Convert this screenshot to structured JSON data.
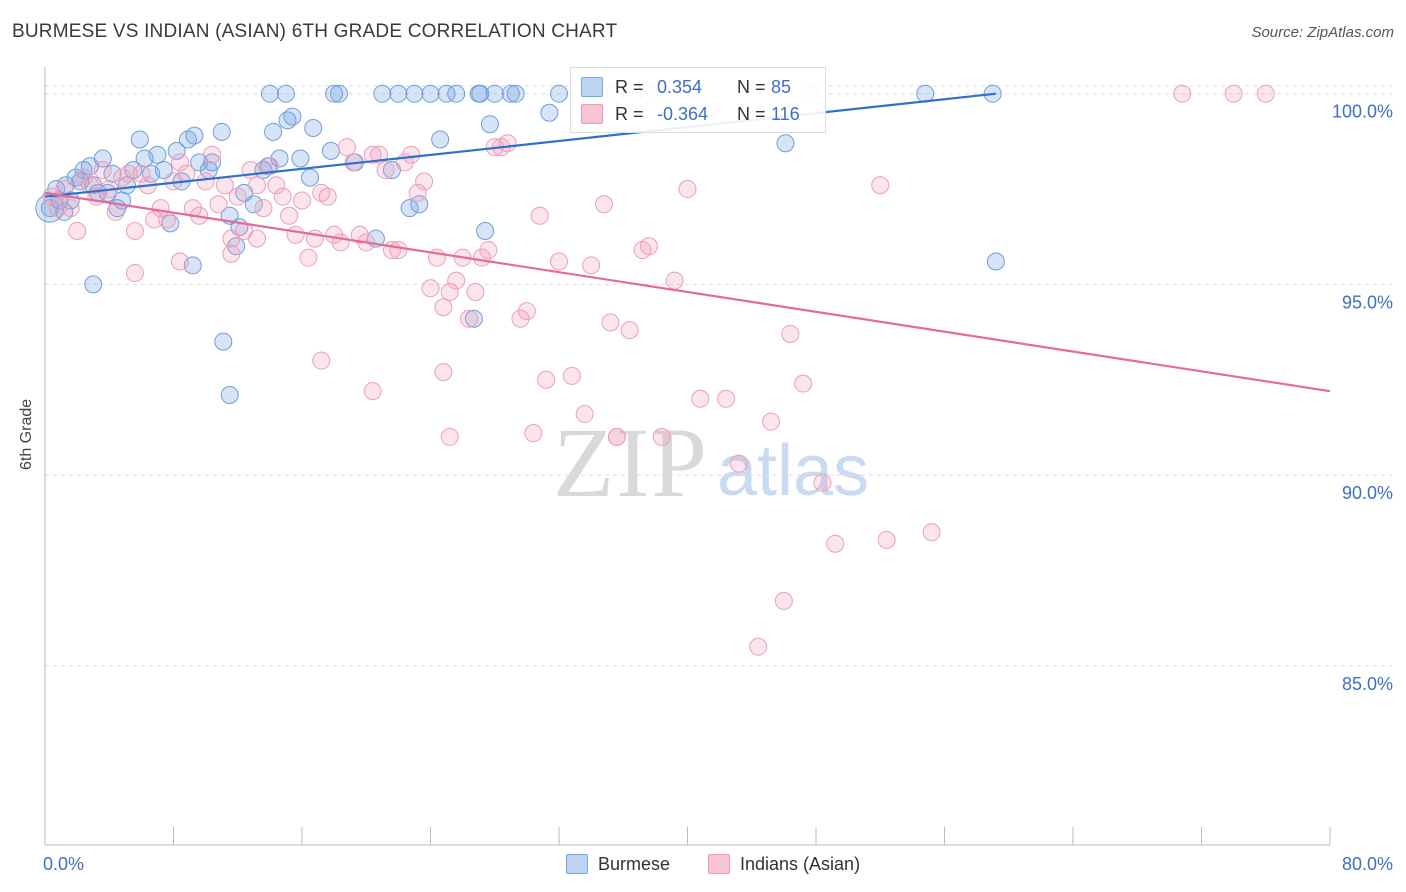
{
  "header": {
    "title": "BURMESE VS INDIAN (ASIAN) 6TH GRADE CORRELATION CHART",
    "source": "Source: ZipAtlas.com"
  },
  "watermark": {
    "zip": "ZIP",
    "atlas": "atlas"
  },
  "legend_box": {
    "rows": [
      {
        "r_label": "R =",
        "r_value": "0.354",
        "n_label": "N =",
        "n_value": "85",
        "color": "#a9c6ee"
      },
      {
        "r_label": "R =",
        "r_value": "-0.364",
        "n_label": "N =",
        "n_value": "116",
        "color": "#f5b3c8"
      }
    ]
  },
  "bottom_legend": {
    "items": [
      {
        "label": "Burmese",
        "color": "#a9c6ee"
      },
      {
        "label": "Indians (Asian)",
        "color": "#f5b3c8"
      }
    ]
  },
  "colors": {
    "blue_fill": "rgba(120,165,225,0.30)",
    "blue_stroke": "#6e9fdc",
    "blue_line": "#2f6fce",
    "pink_fill": "rgba(240,150,180,0.25)",
    "pink_stroke": "#ef9db8",
    "pink_line": "#e46b99",
    "tick_label": "#3d6fc4",
    "grid": "#dcdcdc"
  },
  "chart_data": {
    "type": "scatter",
    "title": "BURMESE VS INDIAN (ASIAN) 6TH GRADE CORRELATION CHART",
    "xlabel": "",
    "ylabel": "6th Grade",
    "xlim": [
      0,
      80
    ],
    "ylim": [
      80.3,
      100.7
    ],
    "x_tick_labels": [
      "0.0%",
      "80.0%"
    ],
    "y_ticks": [
      85,
      90,
      95,
      100
    ],
    "y_tick_labels": [
      "85.0%",
      "90.0%",
      "95.0%",
      "100.0%"
    ],
    "grid": true,
    "legend_placement": "top-center",
    "series": [
      {
        "name": "Burmese",
        "r": 0.354,
        "n": 85,
        "trend": {
          "x": [
            0,
            59.2
          ],
          "y": [
            97.3,
            100.0
          ]
        },
        "points": [
          [
            0.3,
            97.0
          ],
          [
            0.7,
            97.5
          ],
          [
            0.9,
            97.2
          ],
          [
            1.2,
            96.9
          ],
          [
            1.3,
            97.6
          ],
          [
            1.6,
            97.2
          ],
          [
            1.9,
            97.8
          ],
          [
            2.2,
            97.7
          ],
          [
            2.4,
            98.0
          ],
          [
            2.8,
            98.1
          ],
          [
            3.0,
            97.6
          ],
          [
            3.3,
            97.4
          ],
          [
            3.6,
            98.3
          ],
          [
            3.9,
            97.4
          ],
          [
            4.2,
            97.9
          ],
          [
            4.5,
            97.0
          ],
          [
            4.8,
            97.2
          ],
          [
            5.1,
            97.6
          ],
          [
            5.5,
            98.0
          ],
          [
            5.9,
            98.8
          ],
          [
            6.2,
            98.3
          ],
          [
            6.6,
            97.9
          ],
          [
            7.0,
            98.4
          ],
          [
            7.4,
            98.0
          ],
          [
            7.8,
            96.6
          ],
          [
            8.2,
            98.5
          ],
          [
            8.5,
            97.7
          ],
          [
            8.9,
            98.8
          ],
          [
            9.3,
            98.9
          ],
          [
            9.6,
            98.2
          ],
          [
            10.2,
            98.0
          ],
          [
            10.4,
            98.2
          ],
          [
            11.0,
            99.0
          ],
          [
            11.5,
            96.8
          ],
          [
            11.9,
            96.0
          ],
          [
            12.1,
            96.5
          ],
          [
            12.4,
            97.4
          ],
          [
            13.0,
            97.1
          ],
          [
            13.6,
            98.0
          ],
          [
            13.9,
            98.1
          ],
          [
            14.2,
            99.0
          ],
          [
            14.6,
            98.3
          ],
          [
            15.1,
            99.3
          ],
          [
            15.4,
            99.4
          ],
          [
            15.9,
            98.3
          ],
          [
            16.5,
            97.8
          ],
          [
            16.7,
            99.1
          ],
          [
            17.8,
            98.5
          ],
          [
            18.3,
            100.0
          ],
          [
            19.3,
            98.2
          ],
          [
            20.6,
            96.2
          ],
          [
            21.6,
            98.0
          ],
          [
            22.7,
            97.0
          ],
          [
            23.3,
            97.1
          ],
          [
            24.0,
            100.0
          ],
          [
            24.6,
            98.8
          ],
          [
            25.0,
            100.0
          ],
          [
            25.6,
            100.0
          ],
          [
            26.7,
            94.1
          ],
          [
            27.0,
            100.0
          ],
          [
            27.1,
            100.0
          ],
          [
            27.4,
            96.4
          ],
          [
            27.7,
            99.2
          ],
          [
            29.0,
            100.0
          ],
          [
            29.3,
            100.0
          ],
          [
            31.4,
            99.5
          ],
          [
            32.0,
            100.0
          ],
          [
            35.5,
            100.0
          ],
          [
            37.6,
            100.0
          ],
          [
            46.1,
            98.7
          ],
          [
            54.8,
            100.0
          ],
          [
            59.2,
            95.6
          ],
          [
            3.0,
            95.0
          ],
          [
            9.2,
            95.5
          ],
          [
            11.1,
            93.5
          ],
          [
            11.5,
            92.1
          ],
          [
            14.0,
            100.0
          ],
          [
            15.0,
            100.0
          ],
          [
            18.0,
            100.0
          ],
          [
            21.0,
            100.0
          ],
          [
            22.0,
            100.0
          ],
          [
            23.0,
            100.0
          ],
          [
            28.0,
            100.0
          ],
          [
            34.0,
            100.0
          ],
          [
            59.0,
            100.0
          ]
        ]
      },
      {
        "name": "Indians (Asian)",
        "r": -0.364,
        "n": 116,
        "trend": {
          "x": [
            0,
            80
          ],
          "y": [
            97.4,
            92.2
          ]
        },
        "points": [
          [
            0.4,
            97.3
          ],
          [
            0.8,
            97.0
          ],
          [
            1.2,
            97.5
          ],
          [
            1.6,
            97.0
          ],
          [
            2.0,
            96.4
          ],
          [
            2.4,
            97.8
          ],
          [
            2.8,
            97.6
          ],
          [
            3.2,
            97.3
          ],
          [
            3.6,
            98.0
          ],
          [
            4.0,
            97.5
          ],
          [
            4.4,
            96.9
          ],
          [
            4.8,
            97.8
          ],
          [
            5.2,
            97.9
          ],
          [
            5.6,
            96.4
          ],
          [
            6.0,
            97.9
          ],
          [
            6.4,
            97.6
          ],
          [
            6.8,
            96.7
          ],
          [
            7.2,
            97.0
          ],
          [
            7.6,
            96.7
          ],
          [
            8.0,
            97.7
          ],
          [
            8.4,
            98.2
          ],
          [
            8.8,
            97.9
          ],
          [
            9.2,
            97.0
          ],
          [
            9.6,
            96.8
          ],
          [
            10.0,
            97.7
          ],
          [
            10.4,
            98.4
          ],
          [
            10.8,
            97.1
          ],
          [
            11.2,
            97.6
          ],
          [
            11.6,
            96.2
          ],
          [
            12.0,
            97.3
          ],
          [
            12.4,
            96.4
          ],
          [
            12.8,
            98.0
          ],
          [
            13.2,
            97.6
          ],
          [
            13.6,
            97.0
          ],
          [
            14.0,
            98.1
          ],
          [
            14.4,
            97.6
          ],
          [
            14.8,
            97.3
          ],
          [
            15.2,
            96.8
          ],
          [
            15.6,
            96.3
          ],
          [
            16.0,
            97.2
          ],
          [
            16.4,
            95.7
          ],
          [
            16.8,
            96.2
          ],
          [
            17.2,
            97.4
          ],
          [
            17.6,
            97.3
          ],
          [
            18.0,
            96.3
          ],
          [
            18.4,
            96.1
          ],
          [
            18.8,
            98.6
          ],
          [
            19.2,
            98.2
          ],
          [
            19.6,
            96.3
          ],
          [
            20.0,
            96.1
          ],
          [
            20.4,
            98.4
          ],
          [
            20.8,
            98.4
          ],
          [
            21.2,
            98.0
          ],
          [
            21.6,
            95.9
          ],
          [
            22.0,
            95.9
          ],
          [
            22.4,
            98.2
          ],
          [
            22.8,
            98.4
          ],
          [
            23.2,
            97.4
          ],
          [
            23.6,
            97.7
          ],
          [
            24.0,
            94.9
          ],
          [
            24.4,
            95.7
          ],
          [
            24.8,
            94.4
          ],
          [
            25.2,
            94.8
          ],
          [
            25.6,
            95.1
          ],
          [
            26.0,
            95.7
          ],
          [
            26.4,
            94.1
          ],
          [
            26.8,
            94.8
          ],
          [
            27.2,
            95.7
          ],
          [
            27.6,
            95.9
          ],
          [
            28.0,
            98.6
          ],
          [
            28.4,
            98.6
          ],
          [
            28.8,
            98.7
          ],
          [
            29.6,
            94.1
          ],
          [
            30.0,
            94.3
          ],
          [
            30.8,
            96.8
          ],
          [
            31.2,
            92.5
          ],
          [
            32.0,
            95.6
          ],
          [
            32.8,
            92.6
          ],
          [
            33.6,
            91.6
          ],
          [
            34.0,
            95.5
          ],
          [
            34.8,
            97.1
          ],
          [
            35.2,
            94.0
          ],
          [
            35.6,
            91.0
          ],
          [
            36.4,
            93.8
          ],
          [
            37.2,
            95.9
          ],
          [
            37.6,
            96.0
          ],
          [
            38.4,
            91.0
          ],
          [
            39.2,
            95.1
          ],
          [
            40.0,
            97.5
          ],
          [
            40.8,
            92.0
          ],
          [
            42.4,
            92.0
          ],
          [
            43.2,
            90.3
          ],
          [
            44.4,
            85.5
          ],
          [
            45.2,
            91.4
          ],
          [
            46.0,
            86.7
          ],
          [
            46.4,
            93.7
          ],
          [
            47.2,
            92.4
          ],
          [
            48.4,
            89.8
          ],
          [
            49.2,
            88.2
          ],
          [
            52.0,
            97.6
          ],
          [
            52.4,
            88.3
          ],
          [
            55.2,
            88.5
          ],
          [
            11.6,
            95.8
          ],
          [
            5.6,
            95.3
          ],
          [
            8.4,
            95.6
          ],
          [
            13.2,
            96.2
          ],
          [
            17.2,
            93.0
          ],
          [
            20.4,
            92.2
          ],
          [
            24.8,
            92.7
          ],
          [
            25.2,
            91.0
          ],
          [
            30.4,
            91.1
          ],
          [
            35.6,
            91.0
          ],
          [
            47.6,
            100.0
          ],
          [
            70.8,
            100.0
          ],
          [
            74.0,
            100.0
          ],
          [
            76.0,
            100.0
          ]
        ]
      }
    ]
  }
}
